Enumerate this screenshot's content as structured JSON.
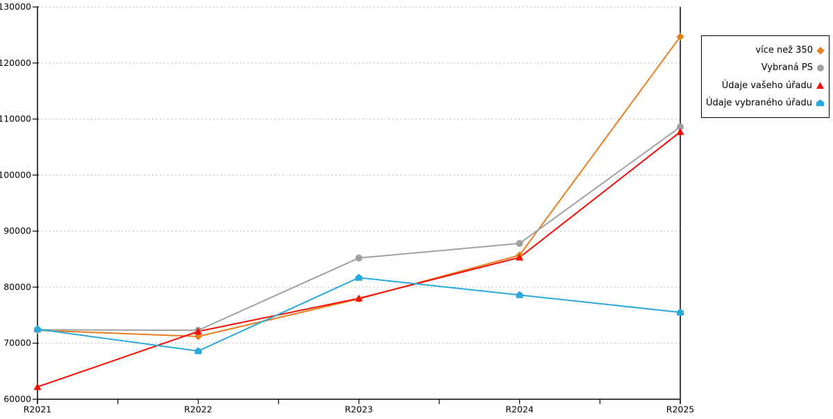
{
  "chart_data": {
    "type": "line",
    "title": "",
    "xlabel": "",
    "ylabel": "",
    "categories": [
      "R2021",
      "R2022",
      "R2023",
      "R2024",
      "R2025"
    ],
    "series": [
      {
        "name": "více než 350",
        "marker": "diamond",
        "color": "#E87D1E",
        "values": [
          72300,
          71200,
          77900,
          85700,
          124700
        ]
      },
      {
        "name": "Vybraná PS",
        "marker": "circle",
        "color": "#A0A0A0",
        "values": [
          72400,
          72300,
          85200,
          87800,
          108600
        ]
      },
      {
        "name": "Údaje vašeho úřadu",
        "marker": "triangle",
        "color": "#F90D02",
        "values": [
          62200,
          72100,
          78000,
          85300,
          107700
        ]
      },
      {
        "name": "Údaje vybraného úřadu",
        "marker": "pentagon",
        "color": "#29A9DC",
        "values": [
          72500,
          68600,
          81700,
          78600,
          75500
        ]
      }
    ],
    "ylim": [
      60000,
      130000
    ],
    "yticks": [
      60000,
      70000,
      80000,
      90000,
      100000,
      110000,
      120000,
      130000
    ],
    "grid": "horizontal-dotted",
    "grid_color": "#b3b3b3",
    "axis_color": "#000000",
    "legend_position": "top-right"
  }
}
